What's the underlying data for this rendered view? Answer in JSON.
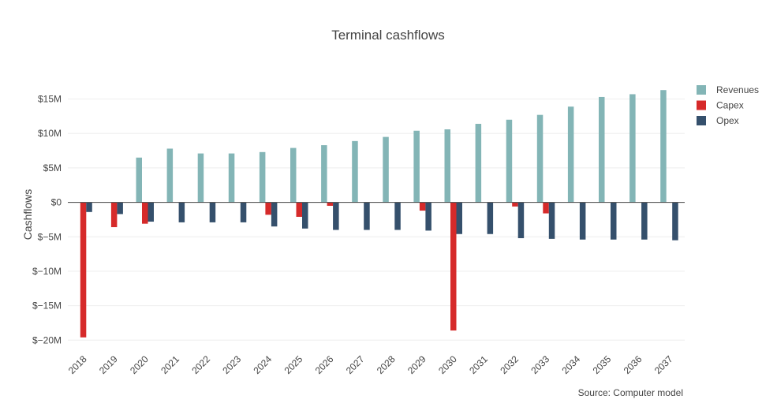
{
  "chart_data": {
    "type": "bar",
    "title": "Terminal cashflows",
    "ylabel": "Cashflows",
    "xlabel": "",
    "source": "Source: Computer model",
    "ylim": [
      -21,
      18.5
    ],
    "yticks": [
      15,
      10,
      5,
      0,
      -5,
      -10,
      -15,
      -20
    ],
    "ytick_labels": [
      "$15M",
      "$10M",
      "$5M",
      "$0",
      "$−5M",
      "$−10M",
      "$−15M",
      "$−20M"
    ],
    "grid": true,
    "legend_position": "top-right",
    "categories": [
      "2018",
      "2019",
      "2020",
      "2021",
      "2022",
      "2023",
      "2024",
      "2025",
      "2026",
      "2027",
      "2028",
      "2029",
      "2030",
      "2031",
      "2032",
      "2033",
      "2034",
      "2035",
      "2036",
      "2037"
    ],
    "series": [
      {
        "name": "Revenues",
        "color": "#83b5b6",
        "values": [
          0,
          0,
          6.5,
          7.8,
          7.1,
          7.1,
          7.3,
          7.9,
          8.3,
          8.9,
          9.5,
          10.4,
          10.6,
          11.4,
          12.0,
          12.7,
          13.9,
          15.3,
          15.7,
          16.3
        ]
      },
      {
        "name": "Capex",
        "color": "#d62a2a",
        "values": [
          -19.6,
          -3.6,
          -3.1,
          0,
          0,
          0,
          -1.8,
          -2.1,
          -0.5,
          0,
          0,
          -1.2,
          -18.6,
          0,
          -0.6,
          -1.6,
          0,
          0,
          0,
          0
        ]
      },
      {
        "name": "Opex",
        "color": "#35506c",
        "values": [
          -1.4,
          -1.7,
          -2.8,
          -2.9,
          -2.9,
          -2.9,
          -3.5,
          -3.8,
          -4.0,
          -4.0,
          -4.0,
          -4.1,
          -4.6,
          -4.6,
          -5.2,
          -5.3,
          -5.4,
          -5.4,
          -5.4,
          -5.5
        ]
      }
    ]
  }
}
